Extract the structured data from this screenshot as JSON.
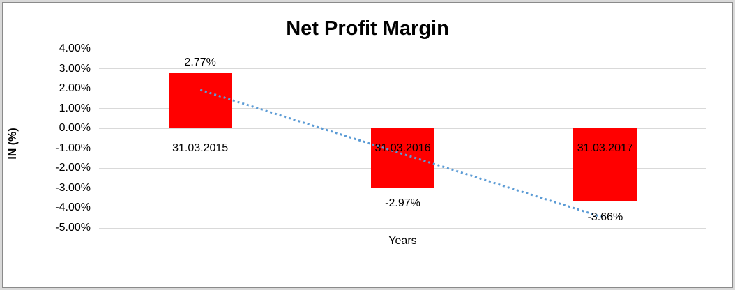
{
  "chart_data": {
    "type": "bar",
    "title": "Net Profit Margin",
    "xlabel": "Years",
    "ylabel": "IN (%)",
    "categories": [
      "31.03.2015",
      "31.03.2016",
      "31.03.2017"
    ],
    "values": [
      2.77,
      -2.97,
      -3.66
    ],
    "data_labels": [
      "2.77%",
      "-2.97%",
      "-3.66%"
    ],
    "ylim": [
      -5,
      4
    ],
    "ytick_labels": [
      "4.00%",
      "3.00%",
      "2.00%",
      "1.00%",
      "0.00%",
      "-1.00%",
      "-2.00%",
      "-3.00%",
      "-4.00%",
      "-5.00%"
    ],
    "ytick_values": [
      4,
      3,
      2,
      1,
      0,
      -1,
      -2,
      -3,
      -4,
      -5
    ],
    "grid": true,
    "legend": "none",
    "colors": {
      "bar": "#ff0000",
      "gridline": "#d9d9d9",
      "trendline": "#5b9bd5",
      "text": "#000000",
      "frame_outer": "#d9d9d9",
      "frame_inner": "#8a8a8a"
    },
    "trendline": {
      "type": "linear",
      "style": "dotted",
      "start_value": 1.93,
      "end_value": -4.5
    },
    "category_label_position": "axis_below_zero_at_minus_1pct"
  }
}
